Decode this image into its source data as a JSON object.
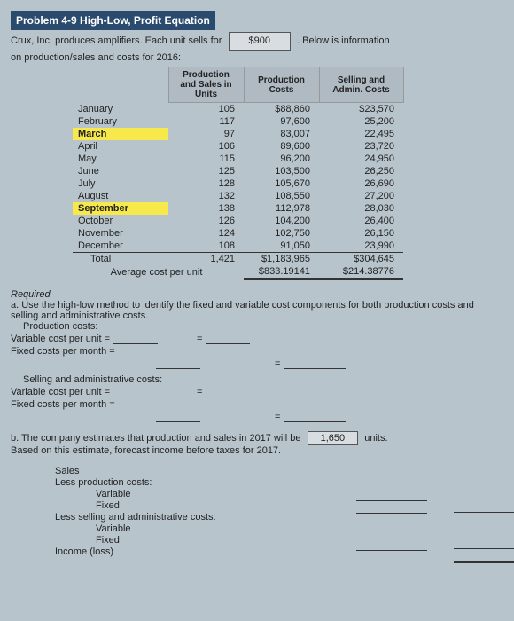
{
  "title": "Problem 4-9 High-Low, Profit Equation",
  "intro": {
    "company": "Crux, Inc. produces amplifiers. Each unit sells for",
    "price": "$900",
    "tail": ". Below is information",
    "line2": "on production/sales and costs for 2016:"
  },
  "table": {
    "headers": {
      "units": "Production and Sales in Units",
      "prod": "Production Costs",
      "admin": "Selling and Admin. Costs"
    },
    "rows": [
      {
        "month": "January",
        "units": "105",
        "prod": "$88,860",
        "admin": "$23,570",
        "hl": false
      },
      {
        "month": "February",
        "units": "117",
        "prod": "97,600",
        "admin": "25,200",
        "hl": false
      },
      {
        "month": "March",
        "units": "97",
        "prod": "83,007",
        "admin": "22,495",
        "hl": true
      },
      {
        "month": "April",
        "units": "106",
        "prod": "89,600",
        "admin": "23,720",
        "hl": false
      },
      {
        "month": "May",
        "units": "115",
        "prod": "96,200",
        "admin": "24,950",
        "hl": false
      },
      {
        "month": "June",
        "units": "125",
        "prod": "103,500",
        "admin": "26,250",
        "hl": false
      },
      {
        "month": "July",
        "units": "128",
        "prod": "105,670",
        "admin": "26,690",
        "hl": false
      },
      {
        "month": "August",
        "units": "132",
        "prod": "108,550",
        "admin": "27,200",
        "hl": false
      },
      {
        "month": "September",
        "units": "138",
        "prod": "112,978",
        "admin": "28,030",
        "hl": true
      },
      {
        "month": "October",
        "units": "126",
        "prod": "104,200",
        "admin": "26,400",
        "hl": false
      },
      {
        "month": "November",
        "units": "124",
        "prod": "102,750",
        "admin": "26,150",
        "hl": false
      },
      {
        "month": "December",
        "units": "108",
        "prod": "91,050",
        "admin": "23,990",
        "hl": false
      }
    ],
    "total": {
      "label": "Total",
      "units": "1,421",
      "prod": "$1,183,965",
      "admin": "$304,645"
    },
    "avg": {
      "label": "Average cost per unit",
      "prod": "$833.19141",
      "admin": "$214.38776"
    }
  },
  "required": {
    "heading": "Required",
    "a_text": "a. Use the high-low method to identify the fixed and variable cost components for both production costs and selling and administrative costs.",
    "prod_costs": "Production costs:",
    "vcpu": "Variable cost per unit =",
    "fcpm": "Fixed costs per month =",
    "sac": "Selling and administrative costs:",
    "eq": "="
  },
  "partb": {
    "text1": "b. The company estimates that production and sales in 2017 will be",
    "units_box": "1,650",
    "units_label": "units.",
    "text2": "Based on this estimate, forecast income before taxes for 2017."
  },
  "forecast": {
    "sales": "Sales",
    "less_prod": "Less production costs:",
    "variable": "Variable",
    "fixed": "Fixed",
    "less_sell": "Less selling and administrative costs:",
    "income": "Income (loss)"
  },
  "colors": {
    "background": "#b8c4cc",
    "title_bg": "#2a4a6e",
    "highlight": "#f7e84b",
    "header_bg": "#b0bac2",
    "input_bg": "#d8dde2"
  }
}
